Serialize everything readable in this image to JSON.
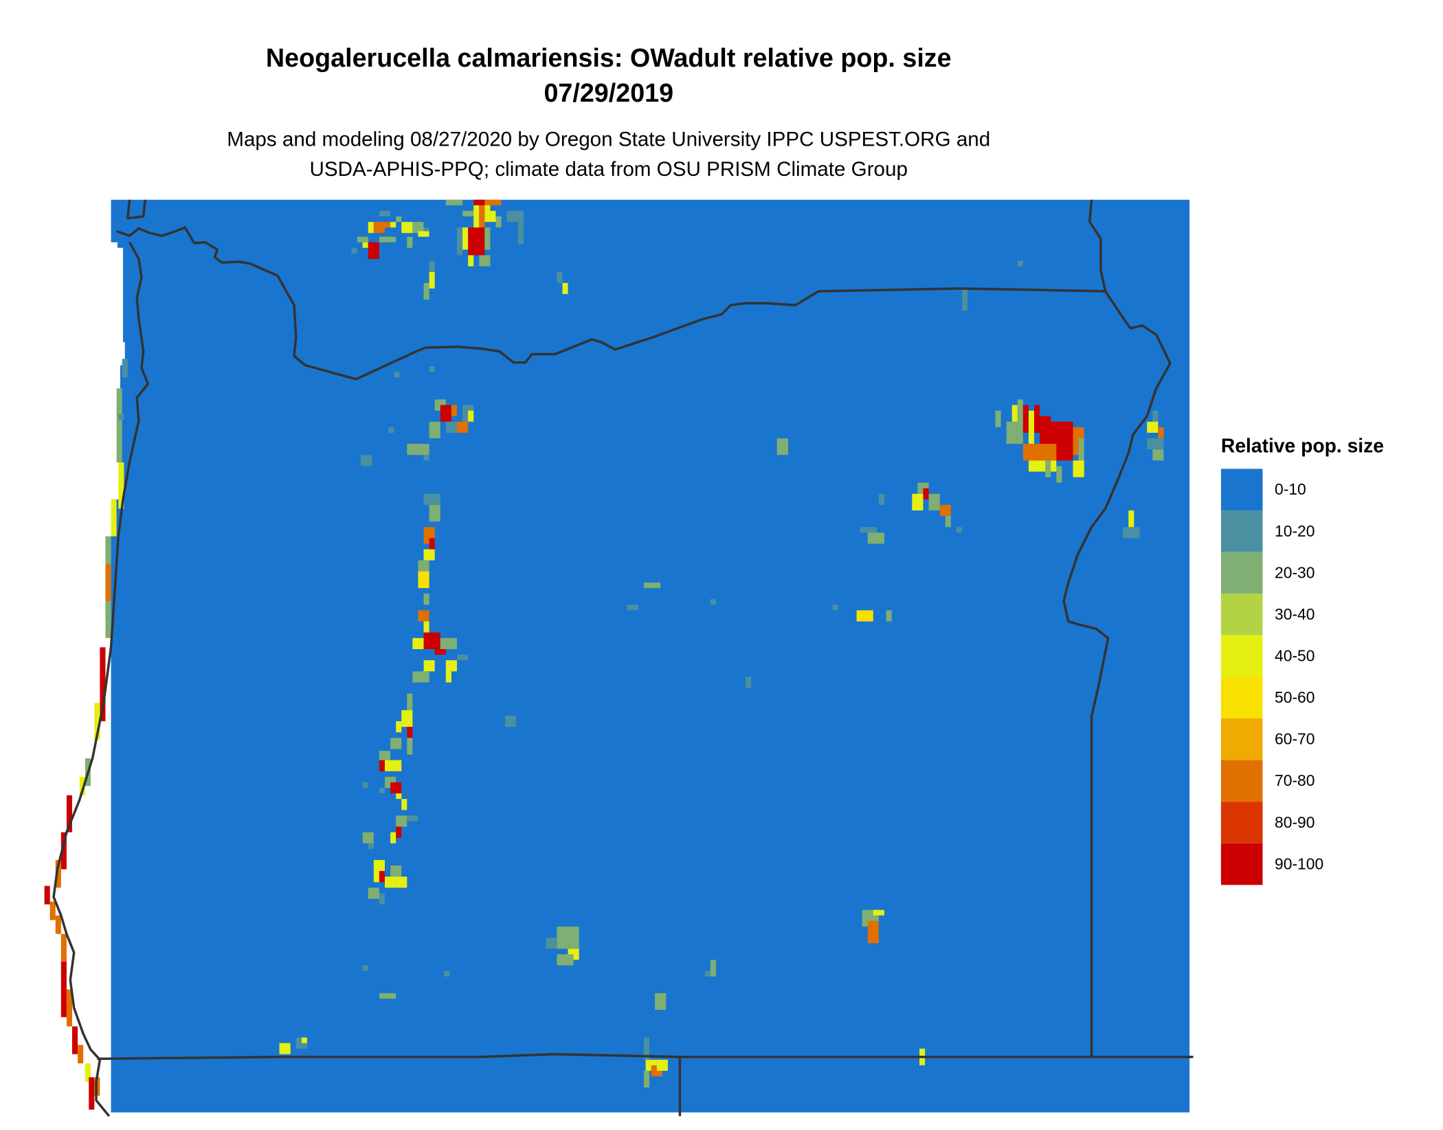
{
  "title": {
    "line1": "Neogalerucella calmariensis: OWadult relative pop. size",
    "line2": "07/29/2019"
  },
  "subtitle": {
    "line1": "Maps and modeling 08/27/2020 by Oregon State University IPPC USPEST.ORG and",
    "line2": "USDA-APHIS-PPQ; climate data from OSU PRISM Climate Group"
  },
  "legend": {
    "title": "Relative pop. size",
    "items": [
      {
        "label": "0-10",
        "color": "#1a75cf"
      },
      {
        "label": "10-20",
        "color": "#4a90a0"
      },
      {
        "label": "20-30",
        "color": "#7faf72"
      },
      {
        "label": "30-40",
        "color": "#b3d244"
      },
      {
        "label": "40-50",
        "color": "#e6ef12"
      },
      {
        "label": "50-60",
        "color": "#f8e000"
      },
      {
        "label": "60-70",
        "color": "#efab00"
      },
      {
        "label": "70-80",
        "color": "#e07000"
      },
      {
        "label": "80-90",
        "color": "#da3500"
      },
      {
        "label": "90-100",
        "color": "#cc0000"
      }
    ]
  },
  "map": {
    "background_class": "0-10",
    "border_color": "#333333"
  }
}
